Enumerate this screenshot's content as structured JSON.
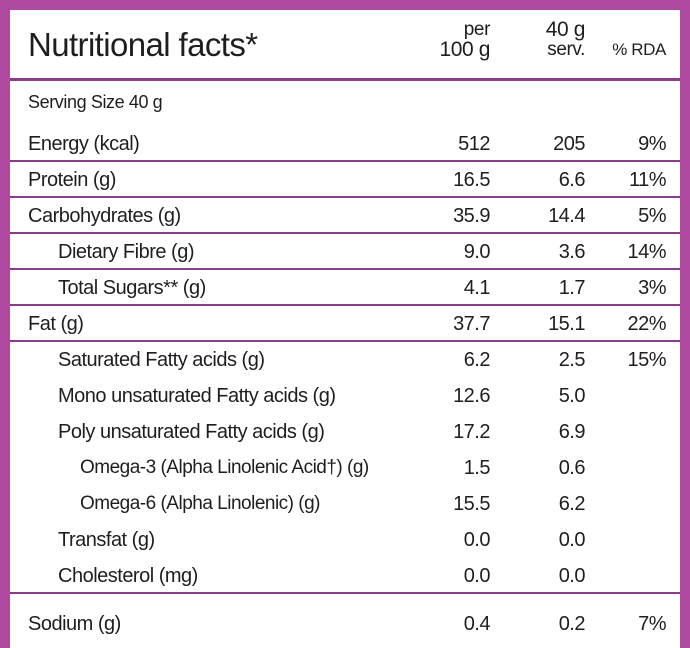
{
  "title": "Nutritional facts*",
  "columns": {
    "per100_line1": "per",
    "per100_line2": "100 g",
    "serv_line1": "40 g",
    "serv_line2": "serv.",
    "rda": "% RDA"
  },
  "serving_size": "Serving Size 40 g",
  "rows": [
    {
      "label": "Energy (kcal)",
      "per100": "512",
      "serv": "205",
      "rda": "9%"
    },
    {
      "label": "Protein (g)",
      "per100": "16.5",
      "serv": "6.6",
      "rda": "11%"
    },
    {
      "label": "Carbohydrates (g)",
      "per100": "35.9",
      "serv": "14.4",
      "rda": "5%"
    },
    {
      "label": "Dietary Fibre (g)",
      "per100": "9.0",
      "serv": "3.6",
      "rda": "14%"
    },
    {
      "label": "Total Sugars** (g)",
      "per100": "4.1",
      "serv": "1.7",
      "rda": "3%"
    },
    {
      "label": "Fat (g)",
      "per100": "37.7",
      "serv": "15.1",
      "rda": "22%"
    },
    {
      "label": "Saturated Fatty acids (g)",
      "per100": "6.2",
      "serv": "2.5",
      "rda": "15%"
    },
    {
      "label": "Mono unsaturated Fatty acids (g)",
      "per100": "12.6",
      "serv": "5.0",
      "rda": ""
    },
    {
      "label": "Poly unsaturated Fatty acids (g)",
      "per100": "17.2",
      "serv": "6.9",
      "rda": ""
    },
    {
      "label": "Omega-3 (Alpha Linolenic Acid†) (g)",
      "per100": "1.5",
      "serv": "0.6",
      "rda": ""
    },
    {
      "label": "Omega-6 (Alpha Linolenic) (g)",
      "per100": "15.5",
      "serv": "6.2",
      "rda": ""
    },
    {
      "label": "Transfat (g)",
      "per100": "0.0",
      "serv": "0.0",
      "rda": ""
    },
    {
      "label": "Cholesterol (mg)",
      "per100": "0.0",
      "serv": "0.0",
      "rda": ""
    },
    {
      "label": "Sodium (g)",
      "per100": "0.4",
      "serv": "0.2",
      "rda": "7%"
    }
  ],
  "colors": {
    "border": "#b04aa0",
    "rule": "#8e3d8a"
  }
}
